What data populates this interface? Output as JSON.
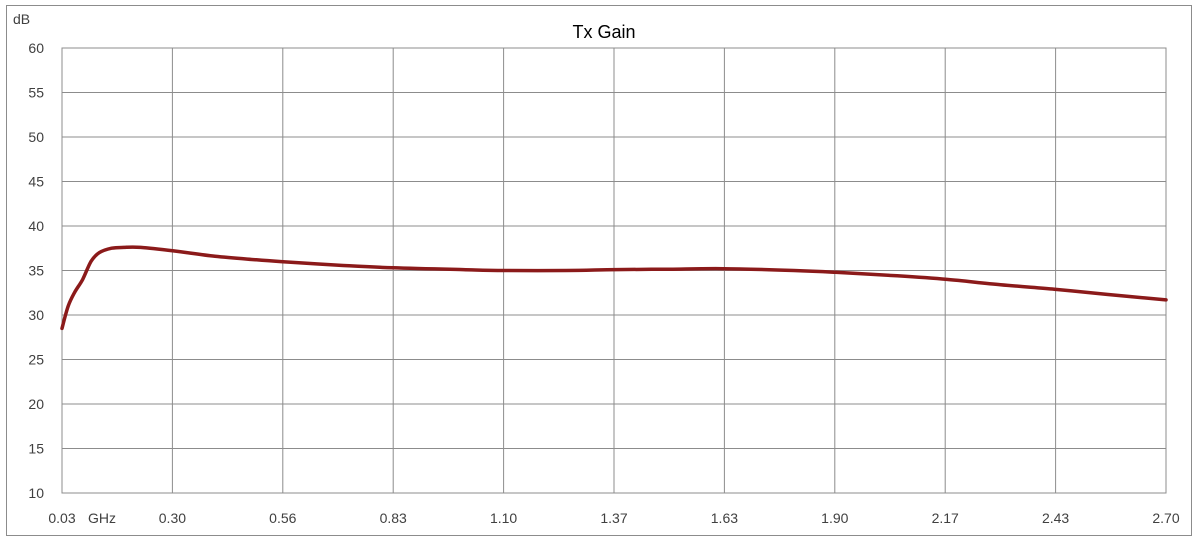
{
  "chart_data": {
    "type": "line",
    "title": "Tx Gain",
    "ylabel": "dB",
    "x_unit": "GHz",
    "ylim": [
      10,
      60
    ],
    "xlim": [
      0.03,
      2.7
    ],
    "yticks": [
      "10",
      "15",
      "20",
      "25",
      "30",
      "35",
      "40",
      "45",
      "50",
      "55",
      "60"
    ],
    "xticks": [
      "0.03",
      "0.30",
      "0.56",
      "0.83",
      "1.10",
      "1.37",
      "1.63",
      "1.90",
      "2.17",
      "2.43",
      "2.70"
    ],
    "grid": true,
    "legend": "none",
    "series": [
      {
        "color": "#8b1a1a",
        "x": [
          0.03,
          0.045,
          0.06,
          0.08,
          0.1,
          0.12,
          0.15,
          0.18,
          0.22,
          0.3,
          0.4,
          0.5,
          0.56,
          0.7,
          0.83,
          1.0,
          1.1,
          1.25,
          1.37,
          1.5,
          1.63,
          1.8,
          1.9,
          2.05,
          2.17,
          2.3,
          2.43,
          2.56,
          2.7
        ],
        "y": [
          28.5,
          31.0,
          32.5,
          34.0,
          36.0,
          37.0,
          37.5,
          37.6,
          37.6,
          37.2,
          36.6,
          36.2,
          36.0,
          35.6,
          35.3,
          35.1,
          35.0,
          35.0,
          35.1,
          35.15,
          35.2,
          35.0,
          34.8,
          34.4,
          34.0,
          33.4,
          32.9,
          32.3,
          31.7
        ]
      }
    ]
  }
}
